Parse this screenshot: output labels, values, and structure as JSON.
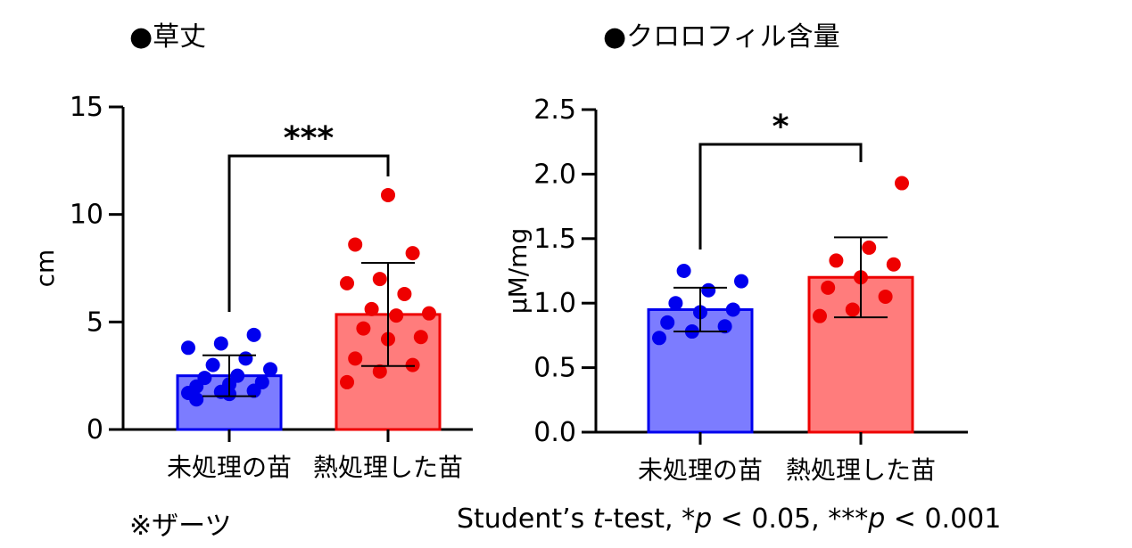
{
  "titles": {
    "left": "●草丈",
    "right": "●クロロフィル含量"
  },
  "notes": {
    "variety": "※ザーツ",
    "stats": "Student’s t-test, *p < 0.05, ***p < 0.001"
  },
  "colors": {
    "untreated_fill": "#7c7cff",
    "untreated_edge": "#0000ee",
    "heat_fill": "#ff7c7c",
    "heat_edge": "#ee0000"
  },
  "chart_data": [
    {
      "type": "bar",
      "title": "●草丈",
      "ylabel": "cm",
      "ylim": [
        0,
        15
      ],
      "yticks": [
        "0",
        "5",
        "10",
        "15"
      ],
      "categories": [
        "未処理の苗",
        "熱処理した苗"
      ],
      "values": [
        2.5,
        5.35
      ],
      "sd": [
        0.95,
        2.4
      ],
      "points": [
        [
          1.7,
          1.75,
          1.8,
          2.0,
          2.1,
          2.2,
          2.4,
          2.5,
          2.8,
          3.0,
          3.3,
          3.8,
          4.0,
          4.4,
          1.4,
          1.65
        ],
        [
          2.2,
          2.7,
          3.0,
          3.3,
          4.2,
          4.3,
          4.7,
          5.3,
          5.4,
          5.6,
          6.3,
          6.8,
          7.0,
          8.2,
          8.6,
          10.9
        ]
      ],
      "significance": "***",
      "grid": false
    },
    {
      "type": "bar",
      "title": "●クロロフィル含量",
      "ylabel": "µM/mg",
      "ylim": [
        0,
        2.5
      ],
      "yticks": [
        "0.0",
        "0.5",
        "1.0",
        "1.5",
        "2.0",
        "2.5"
      ],
      "categories": [
        "未処理の苗",
        "熱処理した苗"
      ],
      "values": [
        0.95,
        1.2
      ],
      "sd": [
        0.17,
        0.31
      ],
      "points": [
        [
          0.73,
          0.78,
          0.82,
          0.85,
          0.93,
          0.95,
          1.0,
          1.1,
          1.17,
          1.25
        ],
        [
          0.9,
          0.95,
          1.05,
          1.12,
          1.2,
          1.3,
          1.33,
          1.43,
          1.93
        ]
      ],
      "significance": "*",
      "grid": false
    }
  ]
}
